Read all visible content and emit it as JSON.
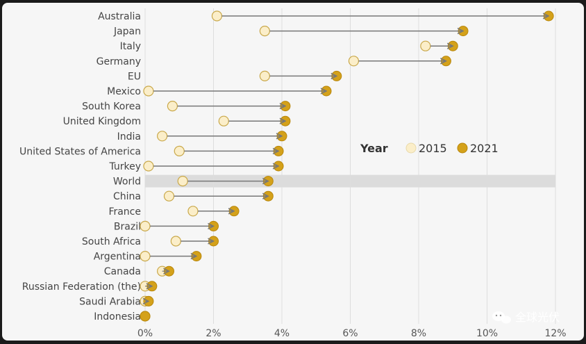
{
  "chart_data": {
    "type": "dumbbell",
    "title": "",
    "xlabel": "",
    "ylabel": "",
    "xlim": [
      0,
      12
    ],
    "x_ticks": [
      "0%",
      "2%",
      "4%",
      "6%",
      "8%",
      "10%",
      "12%"
    ],
    "highlight_category": "World",
    "legend": {
      "title": "Year",
      "placement": "right-middle",
      "entries": [
        "2015",
        "2021"
      ]
    },
    "series_names": [
      "2015",
      "2021"
    ],
    "categories": [
      "Australia",
      "Japan",
      "Italy",
      "Germany",
      "EU",
      "Mexico",
      "South Korea",
      "United Kingdom",
      "India",
      "United States of America",
      "Turkey",
      "World",
      "China",
      "France",
      "Brazil",
      "South Africa",
      "Argentina",
      "Canada",
      "Russian Federation (the)",
      "Saudi Arabia",
      "Indonesia"
    ],
    "values_2015": [
      2.1,
      3.5,
      8.2,
      6.1,
      3.5,
      0.1,
      0.8,
      2.3,
      0.5,
      1.0,
      0.1,
      1.1,
      0.7,
      1.4,
      0.0,
      0.9,
      0.0,
      0.5,
      0.0,
      0.0,
      0.0
    ],
    "values_2021": [
      11.8,
      9.3,
      9.0,
      8.8,
      5.6,
      5.3,
      4.1,
      4.1,
      4.0,
      3.9,
      3.9,
      3.6,
      3.6,
      2.6,
      2.0,
      2.0,
      1.5,
      0.7,
      0.2,
      0.1,
      0.0
    ]
  },
  "colors": {
    "y2015_fill": "#fbeec9",
    "y2015_stroke": "#c9a84a",
    "y2021_fill": "#d4a11a",
    "y2021_stroke": "#b8860b",
    "arrow": "#777777",
    "highlight": "#dcdcdc",
    "grid": "#dddddd"
  },
  "watermark": {
    "text": "全球光伏",
    "icon": "wechat-icon"
  }
}
